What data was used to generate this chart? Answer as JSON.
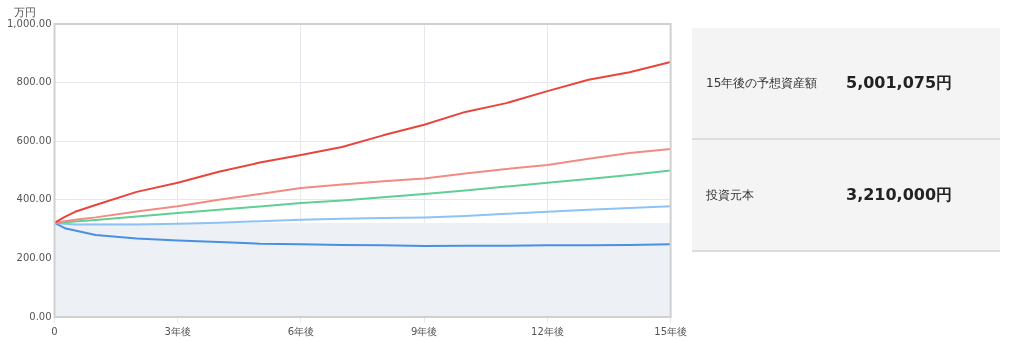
{
  "chart_data": [
    {
      "type": "line",
      "ylabel": "万円",
      "xlim": [
        0,
        15
      ],
      "xticks": [
        {
          "value": 0,
          "label": "0"
        },
        {
          "value": 3,
          "label": "3年後"
        },
        {
          "value": 6,
          "label": "6年後"
        },
        {
          "value": 9,
          "label": "9年後"
        },
        {
          "value": 12,
          "label": "12年後"
        },
        {
          "value": 15,
          "label": "15年後"
        }
      ],
      "ylim": [
        0,
        1000
      ],
      "yticks": [
        {
          "value": 0,
          "label": "0.00"
        },
        {
          "value": 200,
          "label": "200.00"
        },
        {
          "value": 400,
          "label": "400.00"
        },
        {
          "value": 600,
          "label": "600.00"
        },
        {
          "value": 800,
          "label": "800.00"
        },
        {
          "value": 1000,
          "label": "1,000.00"
        }
      ],
      "x": [
        0,
        0.25,
        0.5,
        1,
        2,
        3,
        4,
        5,
        6,
        7,
        8,
        9,
        10,
        11,
        12,
        13,
        14,
        15
      ],
      "series": [
        {
          "color": "#e8453c",
          "values": [
            321,
            342,
            359,
            382,
            427,
            458,
            496,
            527,
            553,
            580,
            620,
            656,
            700,
            730,
            771,
            810,
            835,
            870
          ]
        },
        {
          "color": "#f28b82",
          "values": [
            321,
            327,
            332,
            340,
            360,
            378,
            400,
            420,
            440,
            452,
            463,
            473,
            490,
            505,
            519,
            540,
            560,
            573
          ]
        },
        {
          "color": "#5fcf94",
          "values": [
            321,
            323,
            326,
            331,
            343,
            355,
            366,
            377,
            389,
            398,
            409,
            420,
            432,
            445,
            458,
            471,
            485,
            500
          ]
        },
        {
          "color": "#8ec2f5",
          "values": [
            321,
            318,
            316,
            316,
            316,
            318,
            322,
            327,
            332,
            335,
            338,
            340,
            345,
            352,
            359,
            366,
            372,
            378
          ]
        },
        {
          "color": "#4a90e2",
          "values": [
            321,
            303,
            295,
            280,
            268,
            261,
            256,
            250,
            248,
            246,
            245,
            242,
            243,
            243,
            245,
            245,
            246,
            248
          ]
        }
      ],
      "bands": [
        {
          "axis": "y",
          "from": 0,
          "to": 321,
          "color": "#edf0f5"
        }
      ],
      "grid": true,
      "legend": false,
      "marker": "none",
      "line_style": "solid"
    },
    {
      "type": "other",
      "annotations": [
        "15年後の予想資産額",
        "5,001,075円",
        "投資元本",
        "3,210,000円"
      ]
    }
  ]
}
